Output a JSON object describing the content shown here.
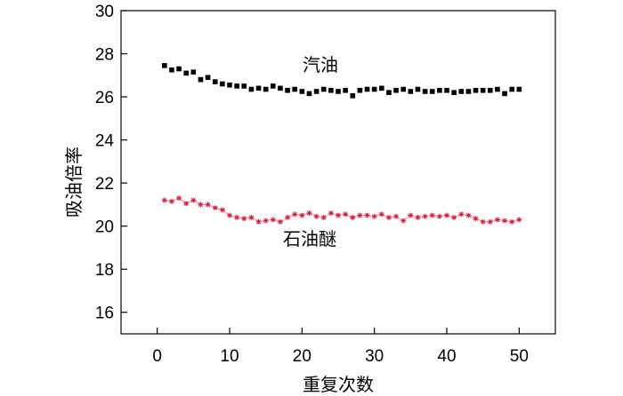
{
  "chart_data": {
    "type": "scatter",
    "title": "",
    "xlabel": "重复次数",
    "ylabel": "吸油倍率",
    "xlim": [
      -5,
      55
    ],
    "ylim": [
      15,
      30
    ],
    "xticks": [
      0,
      10,
      20,
      30,
      40,
      50
    ],
    "yticks": [
      16,
      18,
      20,
      22,
      24,
      26,
      28,
      30
    ],
    "grid": false,
    "x": [
      1,
      2,
      3,
      4,
      5,
      6,
      7,
      8,
      9,
      10,
      11,
      12,
      13,
      14,
      15,
      16,
      17,
      18,
      19,
      20,
      21,
      22,
      23,
      24,
      25,
      26,
      27,
      28,
      29,
      30,
      31,
      32,
      33,
      34,
      35,
      36,
      37,
      38,
      39,
      40,
      41,
      42,
      43,
      44,
      45,
      46,
      47,
      48,
      49,
      50
    ],
    "series": [
      {
        "name": "汽油",
        "color": "#000000",
        "marker": "square",
        "values": [
          27.45,
          27.25,
          27.3,
          27.1,
          27.15,
          26.8,
          26.9,
          26.7,
          26.6,
          26.55,
          26.5,
          26.5,
          26.35,
          26.4,
          26.35,
          26.5,
          26.4,
          26.3,
          26.35,
          26.25,
          26.15,
          26.25,
          26.35,
          26.3,
          26.25,
          26.3,
          26.05,
          26.3,
          26.35,
          26.35,
          26.4,
          26.2,
          26.3,
          26.35,
          26.25,
          26.35,
          26.25,
          26.25,
          26.3,
          26.3,
          26.2,
          26.25,
          26.25,
          26.3,
          26.3,
          26.3,
          26.35,
          26.15,
          26.35,
          26.35
        ]
      },
      {
        "name": "石油醚",
        "color": "#d81b3c",
        "marker": "star",
        "values": [
          21.2,
          21.15,
          21.3,
          21.05,
          21.2,
          21.0,
          21.0,
          20.85,
          20.75,
          20.5,
          20.4,
          20.35,
          20.4,
          20.2,
          20.25,
          20.3,
          20.2,
          20.4,
          20.55,
          20.5,
          20.6,
          20.45,
          20.4,
          20.6,
          20.5,
          20.55,
          20.4,
          20.5,
          20.5,
          20.45,
          20.55,
          20.4,
          20.45,
          20.25,
          20.5,
          20.4,
          20.45,
          20.5,
          20.45,
          20.5,
          20.4,
          20.55,
          20.5,
          20.35,
          20.2,
          20.2,
          20.3,
          20.25,
          20.2,
          20.3
        ]
      }
    ]
  }
}
